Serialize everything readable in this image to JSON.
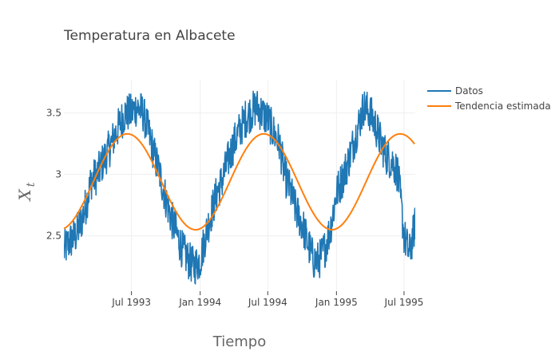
{
  "chart_data": {
    "type": "line",
    "title": "Temperatura en Albacete",
    "xlabel": "Tiempo",
    "ylabel": "X",
    "ylabel_subscript": "t",
    "x_range": [
      "1993-01-01",
      "1995-07-31"
    ],
    "ylim": [
      2.05,
      3.77
    ],
    "x_ticks": [
      {
        "date": "1993-07-01",
        "label": "Jul 1993"
      },
      {
        "date": "1994-01-01",
        "label": "Jan 1994"
      },
      {
        "date": "1994-07-01",
        "label": "Jul 1994"
      },
      {
        "date": "1995-01-01",
        "label": "Jan 1995"
      },
      {
        "date": "1995-07-01",
        "label": "Jul 1995"
      }
    ],
    "y_ticks": [
      {
        "value": 2.5,
        "label": "2.5"
      },
      {
        "value": 3,
        "label": "3"
      },
      {
        "value": 3.5,
        "label": "3.5"
      }
    ],
    "grid": true,
    "legend_position": "top-right",
    "series": [
      {
        "name": "Datos",
        "color": "#1f77b4",
        "points": [
          [
            "1993-01-01",
            2.38
          ],
          [
            "1993-01-15",
            2.45
          ],
          [
            "1993-02-01",
            2.5
          ],
          [
            "1993-02-15",
            2.6
          ],
          [
            "1993-03-01",
            2.75
          ],
          [
            "1993-03-15",
            2.95
          ],
          [
            "1993-04-01",
            3.0
          ],
          [
            "1993-04-15",
            3.1
          ],
          [
            "1993-05-01",
            3.2
          ],
          [
            "1993-05-15",
            3.3
          ],
          [
            "1993-06-01",
            3.42
          ],
          [
            "1993-06-15",
            3.5
          ],
          [
            "1993-07-01",
            3.5
          ],
          [
            "1993-07-15",
            3.55
          ],
          [
            "1993-08-01",
            3.5
          ],
          [
            "1993-08-15",
            3.35
          ],
          [
            "1993-09-01",
            3.15
          ],
          [
            "1993-09-15",
            3.0
          ],
          [
            "1993-10-01",
            2.8
          ],
          [
            "1993-10-15",
            2.65
          ],
          [
            "1993-11-01",
            2.5
          ],
          [
            "1993-11-15",
            2.38
          ],
          [
            "1993-12-01",
            2.3
          ],
          [
            "1993-12-15",
            2.25
          ],
          [
            "1994-01-01",
            2.3
          ],
          [
            "1994-01-15",
            2.5
          ],
          [
            "1994-02-01",
            2.7
          ],
          [
            "1994-02-15",
            2.85
          ],
          [
            "1994-03-01",
            2.95
          ],
          [
            "1994-03-15",
            3.1
          ],
          [
            "1994-04-01",
            3.25
          ],
          [
            "1994-04-15",
            3.35
          ],
          [
            "1994-05-01",
            3.45
          ],
          [
            "1994-05-15",
            3.5
          ],
          [
            "1994-06-01",
            3.55
          ],
          [
            "1994-06-15",
            3.5
          ],
          [
            "1994-07-01",
            3.45
          ],
          [
            "1994-07-15",
            3.35
          ],
          [
            "1994-08-01",
            3.25
          ],
          [
            "1994-08-15",
            3.0
          ],
          [
            "1994-09-01",
            2.85
          ],
          [
            "1994-09-15",
            2.7
          ],
          [
            "1994-10-01",
            2.6
          ],
          [
            "1994-10-15",
            2.45
          ],
          [
            "1994-11-01",
            2.3
          ],
          [
            "1994-11-15",
            2.3
          ],
          [
            "1994-12-01",
            2.4
          ],
          [
            "1994-12-15",
            2.55
          ],
          [
            "1995-01-01",
            2.85
          ],
          [
            "1995-01-15",
            2.95
          ],
          [
            "1995-02-01",
            3.1
          ],
          [
            "1995-02-15",
            3.25
          ],
          [
            "1995-03-01",
            3.4
          ],
          [
            "1995-03-15",
            3.55
          ],
          [
            "1995-04-01",
            3.5
          ],
          [
            "1995-04-15",
            3.4
          ],
          [
            "1995-05-01",
            3.25
          ],
          [
            "1995-05-15",
            3.15
          ],
          [
            "1995-06-01",
            3.1
          ],
          [
            "1995-06-15",
            3.0
          ],
          [
            "1995-07-01",
            2.5
          ],
          [
            "1995-07-15",
            2.35
          ],
          [
            "1995-07-31",
            2.6
          ]
        ]
      },
      {
        "name": "Tendencia estimada",
        "color": "#ff7f0e",
        "mean": 2.94,
        "amplitude": 0.39,
        "period_days": 365.25,
        "peak_date": "1993-06-20",
        "x_start": "1993-01-01",
        "x_end": "1995-07-31"
      }
    ]
  }
}
